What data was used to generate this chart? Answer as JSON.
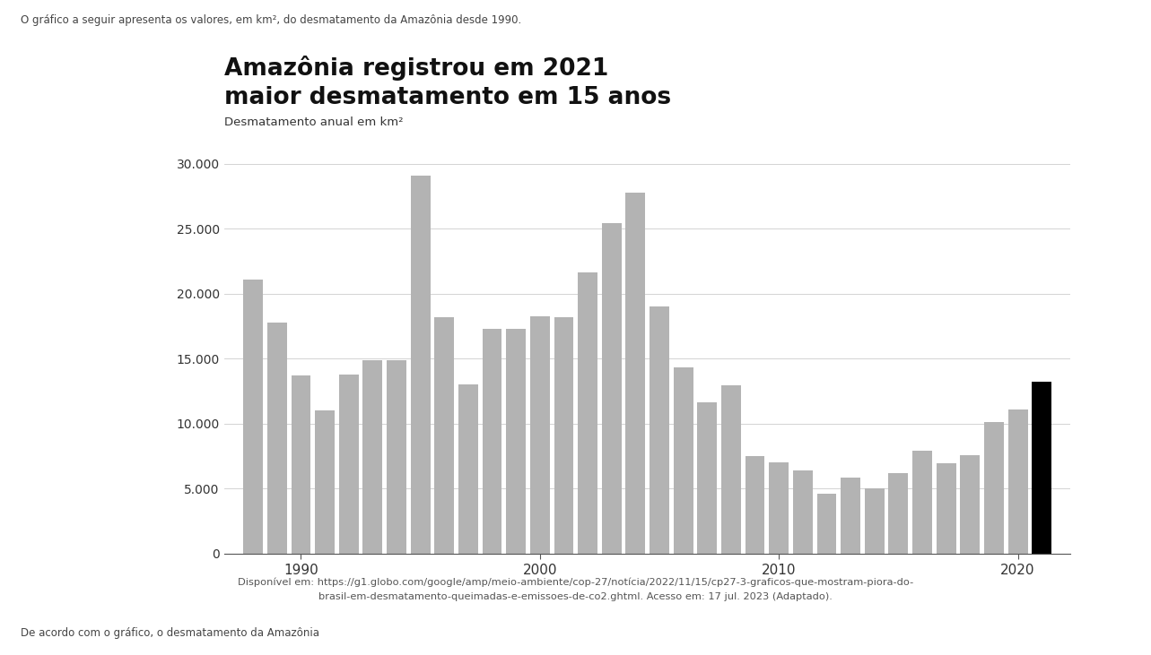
{
  "title_line1": "Amazônia registrou em 2021",
  "title_line2": "maior desmatamento em 15 anos",
  "subtitle": "Desmatamento anual em km²",
  "top_text": "O gráfico a seguir apresenta os valores, em km², do desmatamento da Amazônia desde 1990.",
  "source_line1": "Disponível em: https://g1.globo.com/google/amp/meio-ambiente/cop-27/notícia/2022/11/15/cp27-3-graficos-que-mostram-piora-do-",
  "source_line2": "brasil-em-desmatamento-queimadas-e-emissoes-de-co2.ghtml. Acesso em: 17 jul. 2023 (Adaptado).",
  "bottom_text": "De acordo com o gráfico, o desmatamento da Amazônia",
  "years": [
    1988,
    1989,
    1990,
    1991,
    1992,
    1993,
    1994,
    1995,
    1996,
    1997,
    1998,
    1999,
    2000,
    2001,
    2002,
    2003,
    2004,
    2005,
    2006,
    2007,
    2008,
    2009,
    2010,
    2011,
    2012,
    2013,
    2014,
    2015,
    2016,
    2017,
    2018,
    2019,
    2020,
    2021
  ],
  "values": [
    21050,
    17770,
    13730,
    11030,
    13786,
    14896,
    14896,
    29059,
    18161,
    13037,
    17259,
    17259,
    18226,
    18165,
    21651,
    25396,
    27772,
    19014,
    14285,
    11651,
    12911,
    7464,
    7000,
    6418,
    4571,
    5843,
    5012,
    6207,
    7893,
    6947,
    7536,
    10129,
    11088,
    13235
  ],
  "bar_color_default": "#b3b3b3",
  "bar_color_highlight": "#000000",
  "highlight_year": 2021,
  "ylim": [
    0,
    32000
  ],
  "yticks": [
    0,
    5000,
    10000,
    15000,
    20000,
    25000,
    30000
  ],
  "ytick_labels": [
    "0",
    "5.000",
    "10.000",
    "15.000",
    "20.000",
    "25.000",
    "30.000"
  ],
  "xtick_years": [
    1990,
    2000,
    2010,
    2020
  ],
  "background_color": "#ffffff",
  "fig_width": 12.83,
  "fig_height": 7.31
}
